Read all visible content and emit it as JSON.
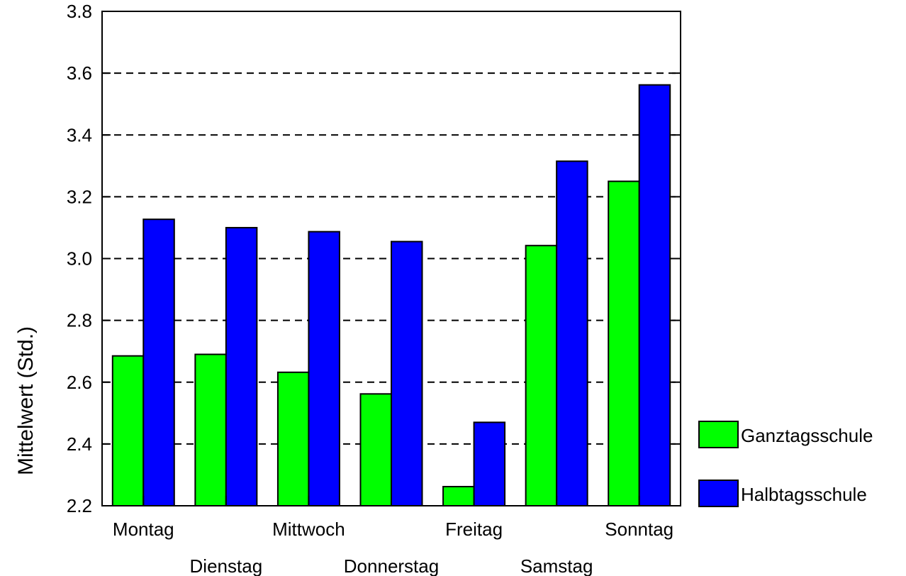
{
  "chart_data": {
    "type": "bar",
    "title": "",
    "xlabel": "",
    "ylabel": "Mittelwert (Std.)",
    "ylim": [
      2.2,
      3.8
    ],
    "yticks": [
      2.2,
      2.4,
      2.6,
      2.8,
      3.0,
      3.2,
      3.4,
      3.6,
      3.8
    ],
    "ytick_labels": [
      "2.2",
      "2.4",
      "2.6",
      "2.8",
      "3.0",
      "3.2",
      "3.4",
      "3.6",
      "3.8"
    ],
    "grid": "horizontal dashed",
    "legend_position": "right",
    "categories": [
      "Montag",
      "Dienstag",
      "Mittwoch",
      "Donnerstag",
      "Freitag",
      "Samstag",
      "Sonntag"
    ],
    "series": [
      {
        "name": "Ganztagsschule",
        "color": "#00ff00",
        "values": [
          2.685,
          2.69,
          2.632,
          2.562,
          2.262,
          3.042,
          3.25
        ]
      },
      {
        "name": "Halbtagsschule",
        "color": "#0000ff",
        "values": [
          3.127,
          3.1,
          3.087,
          3.055,
          2.47,
          3.315,
          3.562
        ]
      }
    ]
  }
}
